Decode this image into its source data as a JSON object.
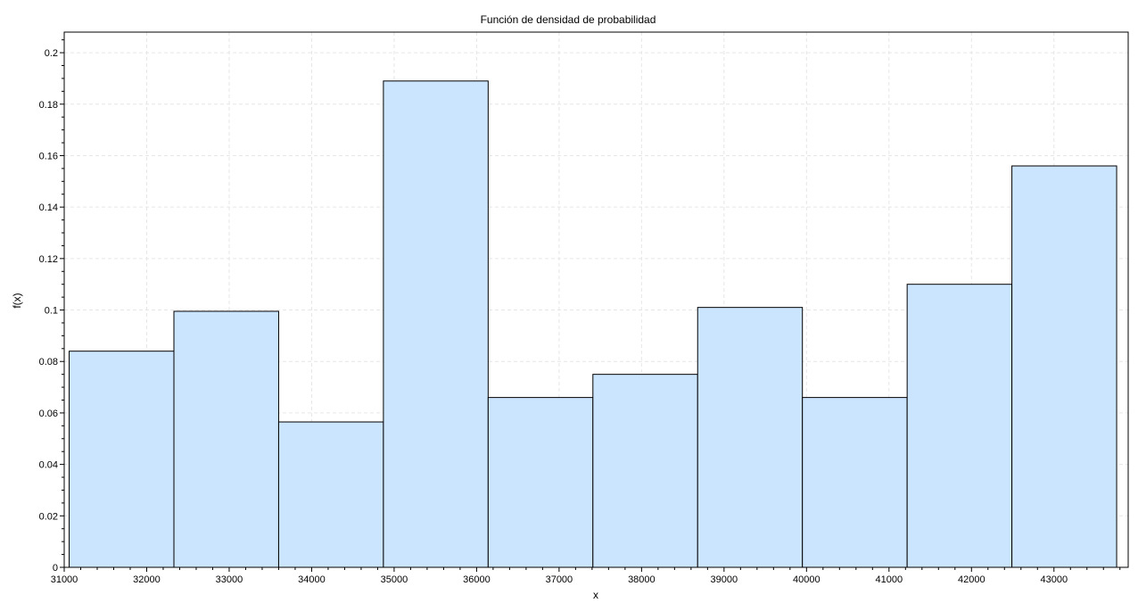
{
  "chart_data": {
    "type": "bar",
    "title": "Función de densidad de probabilidad",
    "xlabel": "x",
    "ylabel": "f(x)",
    "xlim": [
      31000,
      43900
    ],
    "ylim": [
      0,
      0.208
    ],
    "xticks": [
      31000,
      32000,
      33000,
      34000,
      35000,
      36000,
      37000,
      38000,
      39000,
      40000,
      41000,
      42000,
      43000
    ],
    "yticks": [
      0,
      0.02,
      0.04,
      0.06,
      0.08,
      0.1,
      0.12,
      0.14,
      0.16,
      0.18,
      0.2
    ],
    "xtick_labels": [
      "31000",
      "32000",
      "33000",
      "34000",
      "35000",
      "36000",
      "37000",
      "38000",
      "39000",
      "40000",
      "41000",
      "42000",
      "43000"
    ],
    "ytick_labels": [
      "0",
      "0.02",
      "0.04",
      "0.06",
      "0.08",
      "0.1",
      "0.12",
      "0.14",
      "0.16",
      "0.18",
      "0.2"
    ],
    "bins": [
      {
        "x0": 31060,
        "x1": 32330,
        "value": 0.084
      },
      {
        "x0": 32330,
        "x1": 33600,
        "value": 0.0995
      },
      {
        "x0": 33600,
        "x1": 34870,
        "value": 0.0565
      },
      {
        "x0": 34870,
        "x1": 36140,
        "value": 0.189
      },
      {
        "x0": 36140,
        "x1": 37410,
        "value": 0.066
      },
      {
        "x0": 37410,
        "x1": 38680,
        "value": 0.075
      },
      {
        "x0": 38680,
        "x1": 39950,
        "value": 0.101
      },
      {
        "x0": 39950,
        "x1": 41220,
        "value": 0.066
      },
      {
        "x0": 41220,
        "x1": 42490,
        "value": 0.11
      },
      {
        "x0": 42490,
        "x1": 43760,
        "value": 0.156
      }
    ],
    "grid": true,
    "legend": "none"
  }
}
